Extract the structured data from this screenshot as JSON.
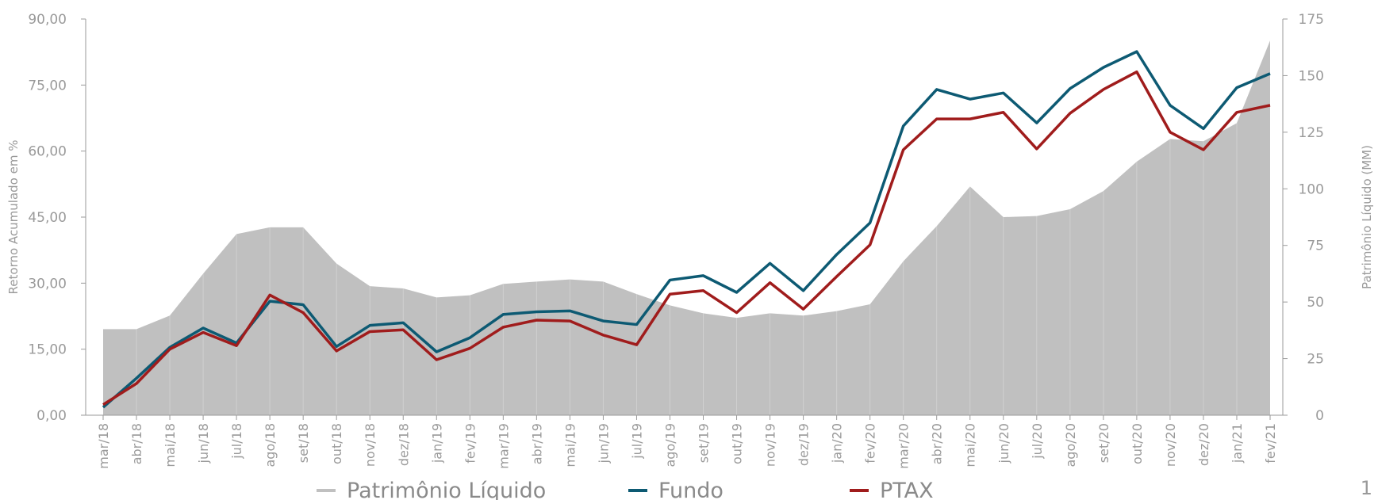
{
  "chart_data": {
    "type": "line",
    "ylabel": "Retorno Acumulado em %",
    "y2label": "Patrimônio Líquido (MM)",
    "page_number": "1",
    "categories": [
      "mar/18",
      "abr/18",
      "mai/18",
      "jun/18",
      "jul/18",
      "ago/18",
      "set/18",
      "out/18",
      "nov/18",
      "dez/18",
      "jan/19",
      "fev/19",
      "mar/19",
      "abr/19",
      "mai/19",
      "jun/19",
      "jul/19",
      "ago/19",
      "set/19",
      "out/19",
      "nov/19",
      "dez/19",
      "jan/20",
      "fev/20",
      "mar/20",
      "abr/20",
      "mai/20",
      "jun/20",
      "jul/20",
      "ago/20",
      "set/20",
      "out/20",
      "nov/20",
      "dez/20",
      "jan/21",
      "fev/21"
    ],
    "series": [
      {
        "name": "Patrimônio Líquido",
        "color": "#c0c0c0",
        "kind": "area",
        "axis": "y2",
        "values": [
          38,
          38,
          44,
          62.5,
          80,
          83,
          83,
          67,
          57,
          56,
          52,
          53,
          58,
          59,
          60,
          59,
          53.5,
          48.5,
          45,
          43,
          45,
          44,
          46,
          49,
          68,
          83.5,
          101,
          87.5,
          88,
          91,
          99,
          112,
          122,
          121,
          129,
          165.5
        ]
      },
      {
        "name": "Fundo",
        "color": "#0d5a73",
        "kind": "line",
        "values": [
          1.8,
          8.4,
          15.4,
          19.8,
          16.4,
          25.9,
          25.1,
          15.6,
          20.4,
          21.0,
          14.4,
          17.6,
          22.9,
          23.5,
          23.7,
          21.4,
          20.6,
          30.7,
          31.7,
          27.9,
          34.5,
          28.3,
          36.5,
          43.7,
          65.7,
          74.0,
          71.8,
          73.2,
          66.4,
          74.2,
          79.0,
          82.6,
          70.4,
          65.1,
          74.4,
          77.6
        ]
      },
      {
        "name": "PTAX",
        "color": "#a01c1c",
        "kind": "line",
        "values": [
          2.4,
          7.2,
          15.0,
          18.8,
          15.8,
          27.3,
          23.3,
          14.6,
          19.0,
          19.4,
          12.6,
          15.2,
          20.0,
          21.6,
          21.4,
          18.2,
          16.0,
          27.5,
          28.3,
          23.3,
          30.1,
          24.1,
          31.5,
          38.7,
          60.3,
          67.3,
          67.3,
          68.8,
          60.5,
          68.6,
          74.0,
          78.0,
          64.3,
          60.3,
          68.8,
          70.4
        ]
      }
    ],
    "ylim": [
      0,
      90
    ],
    "yticks": [
      {
        "value": 0,
        "label": "0,00"
      },
      {
        "value": 15,
        "label": "15,00"
      },
      {
        "value": 30,
        "label": "30,00"
      },
      {
        "value": 45,
        "label": "45,00"
      },
      {
        "value": 60,
        "label": "60,00"
      },
      {
        "value": 75,
        "label": "75,00"
      },
      {
        "value": 90,
        "label": "90,00"
      }
    ],
    "y2lim": [
      0,
      175
    ],
    "y2ticks": [
      0,
      25,
      50,
      75,
      100,
      125,
      150,
      175
    ],
    "legend": "bottom"
  }
}
